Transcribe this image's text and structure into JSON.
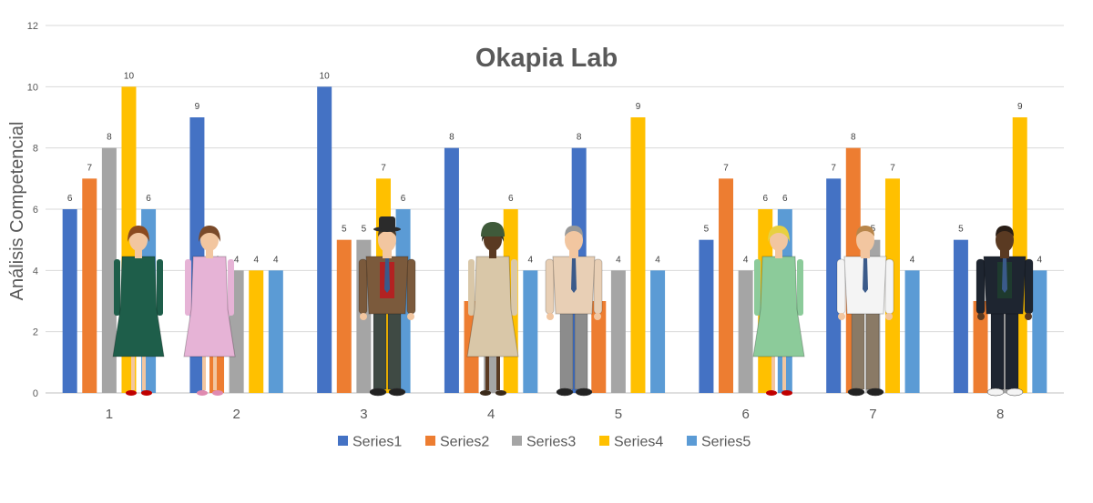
{
  "chart_data": {
    "type": "bar",
    "title": "Okapia Lab",
    "xlabel": "",
    "ylabel": "Análisis Competencial",
    "categories": [
      "1",
      "2",
      "3",
      "4",
      "5",
      "6",
      "7",
      "8"
    ],
    "ylim": [
      0,
      12
    ],
    "yticks": [
      0,
      2,
      4,
      6,
      8,
      10,
      12
    ],
    "grid": true,
    "legend_position": "bottom",
    "data_labels": true,
    "series": [
      {
        "name": "Series1",
        "color": "#4472C4",
        "values": [
          6,
          9,
          10,
          8,
          8,
          5,
          7,
          5
        ]
      },
      {
        "name": "Series2",
        "color": "#ED7D31",
        "values": [
          7,
          4,
          5,
          3,
          3,
          7,
          8,
          3
        ]
      },
      {
        "name": "Series3",
        "color": "#A5A5A5",
        "values": [
          8,
          4,
          5,
          3,
          4,
          4,
          5,
          3
        ]
      },
      {
        "name": "Series4",
        "color": "#FFC000",
        "values": [
          10,
          4,
          7,
          6,
          9,
          6,
          7,
          9
        ]
      },
      {
        "name": "Series5",
        "color": "#5B9BD5",
        "values": [
          6,
          4,
          6,
          4,
          4,
          6,
          4,
          4
        ]
      }
    ],
    "figure_icons": [
      {
        "name": "woman-green-dress-icon",
        "category": "1"
      },
      {
        "name": "woman-pink-dress-icon",
        "category": "2"
      },
      {
        "name": "man-brown-suit-hat-icon",
        "category": "3"
      },
      {
        "name": "woman-beige-dress-icon",
        "category": "4"
      },
      {
        "name": "man-beige-shirt-tie-icon",
        "category": "5"
      },
      {
        "name": "woman-green-polka-dress-icon",
        "category": "6"
      },
      {
        "name": "man-white-shirt-suspenders-icon",
        "category": "7"
      },
      {
        "name": "man-dark-suit-icon",
        "category": "8"
      }
    ]
  }
}
